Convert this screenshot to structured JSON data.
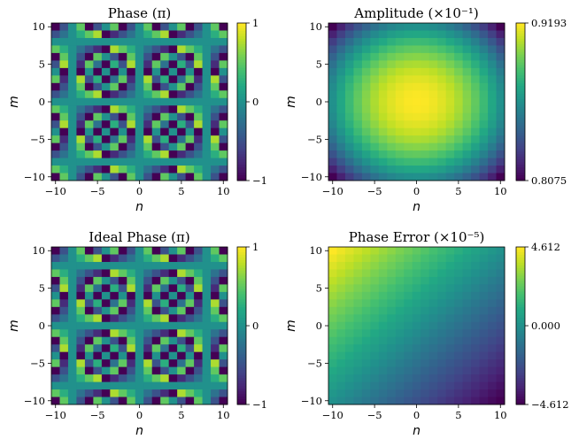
{
  "chart_data": [
    {
      "type": "heatmap",
      "title": "Phase (π)",
      "xlabel": "n",
      "ylabel": "m",
      "x_range": [
        -10,
        10
      ],
      "y_range": [
        -10,
        10
      ],
      "xticks": [
        -10,
        -5,
        0,
        5,
        10
      ],
      "yticks": [
        -10,
        -5,
        0,
        5,
        10
      ],
      "function": "phase = wrap(n*m / 4) in units of π, range [-1, 1]",
      "colormap": "viridis",
      "colorbar": {
        "min": -1,
        "max": 1,
        "ticks": [
          "1",
          "0",
          "−1"
        ]
      }
    },
    {
      "type": "heatmap",
      "title": "Amplitude (×10⁻¹)",
      "xlabel": "n",
      "ylabel": "m",
      "x_range": [
        -10,
        10
      ],
      "y_range": [
        -10,
        10
      ],
      "xticks": [
        -10,
        -5,
        0,
        5,
        10
      ],
      "yticks": [
        -10,
        -5,
        0,
        5,
        10
      ],
      "function": "smooth radial profile, maximum at center (n=0, m=0), minimum at corners",
      "colormap": "viridis",
      "colorbar": {
        "min": 0.8075,
        "max": 0.9193,
        "ticks": [
          "0.9193",
          "0.8075"
        ]
      }
    },
    {
      "type": "heatmap",
      "title": "Ideal Phase (π)",
      "xlabel": "n",
      "ylabel": "m",
      "x_range": [
        -10,
        10
      ],
      "y_range": [
        -10,
        10
      ],
      "xticks": [
        -10,
        -5,
        0,
        5,
        10
      ],
      "yticks": [
        -10,
        -5,
        0,
        5,
        10
      ],
      "function": "phase = wrap(n*m / 4) in units of π, range [-1, 1]",
      "colormap": "viridis",
      "colorbar": {
        "min": -1,
        "max": 1,
        "ticks": [
          "1",
          "0",
          "−1"
        ]
      }
    },
    {
      "type": "heatmap",
      "title": "Phase Error (×10⁻⁵)",
      "xlabel": "n",
      "ylabel": "m",
      "x_range": [
        -10,
        10
      ],
      "y_range": [
        -10,
        10
      ],
      "xticks": [
        -10,
        -5,
        0,
        5,
        10
      ],
      "yticks": [
        -10,
        -5,
        0,
        5,
        10
      ],
      "function": "linear gradient: high at top-left and bottom-right, low at bottom-left and top-right",
      "colormap": "viridis",
      "colorbar": {
        "min": -4.612,
        "max": 4.612,
        "ticks": [
          "4.612",
          "0.000",
          "−4.612"
        ]
      }
    }
  ]
}
